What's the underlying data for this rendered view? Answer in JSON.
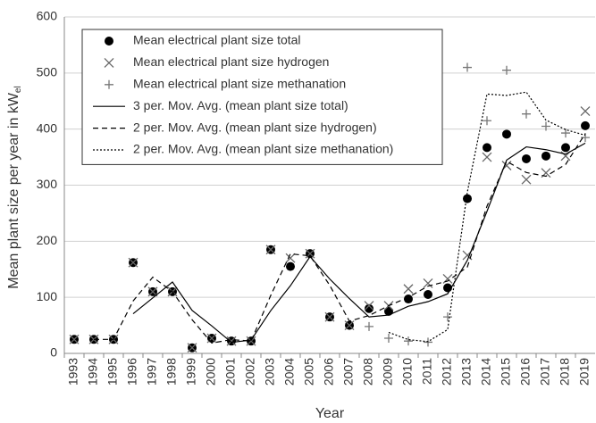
{
  "chart_data": {
    "type": "combo",
    "xlabel": "Year",
    "ylabel": "Mean plant size per year in kW",
    "ylabel_sub": "el",
    "categories": [
      "1993",
      "1994",
      "1995",
      "1996",
      "1997",
      "1998",
      "1999",
      "2000",
      "2001",
      "2002",
      "2003",
      "2004",
      "2005",
      "2006",
      "2007",
      "2008",
      "2009",
      "2010",
      "2011",
      "2012",
      "2013",
      "2014",
      "2015",
      "2016",
      "2017",
      "2018",
      "2019"
    ],
    "ylim": [
      0,
      600
    ],
    "yticks": [
      0,
      100,
      200,
      300,
      400,
      500,
      600
    ],
    "grid": true,
    "legend": "upper left",
    "series": [
      {
        "name": "Mean electrical plant size total",
        "type": "scatter",
        "marker": "circle",
        "color": "#000000",
        "values": [
          25,
          25,
          25,
          162,
          110,
          110,
          10,
          27,
          22,
          22,
          185,
          155,
          178,
          65,
          50,
          80,
          75,
          97,
          105,
          117,
          276,
          367,
          391,
          347,
          352,
          367,
          406
        ]
      },
      {
        "name": "Mean electrical plant size hydrogen",
        "type": "scatter",
        "marker": "x",
        "color": "#666666",
        "values": [
          25,
          25,
          25,
          162,
          110,
          110,
          10,
          27,
          22,
          22,
          185,
          170,
          178,
          65,
          50,
          85,
          85,
          115,
          125,
          133,
          175,
          350,
          335,
          310,
          322,
          352,
          432
        ]
      },
      {
        "name": "Mean electrical plant size methanation",
        "type": "scatter",
        "marker": "plus",
        "color": "#777777",
        "values": [
          null,
          null,
          null,
          null,
          null,
          null,
          null,
          null,
          null,
          null,
          null,
          null,
          null,
          null,
          null,
          48,
          27,
          22,
          20,
          65,
          510,
          415,
          505,
          427,
          405,
          393,
          385
        ]
      },
      {
        "name": "3 per. Mov. Avg. (mean plant size total)",
        "type": "line",
        "dash": "solid",
        "color": "#000000",
        "values": [
          null,
          null,
          null,
          70.7,
          99,
          127.3,
          76.7,
          49,
          19.7,
          23.7,
          76.3,
          120.7,
          172.7,
          132.7,
          97.7,
          65,
          68.3,
          84,
          92.3,
          106.3,
          166,
          253.3,
          344.7,
          368.3,
          363.3,
          355.3,
          375
        ]
      },
      {
        "name": "2 per. Mov. Avg. (mean plant size hydrogen)",
        "type": "line",
        "dash": "dashed",
        "color": "#000000",
        "values": [
          null,
          25,
          25,
          93.5,
          136,
          110,
          60,
          18.5,
          24.5,
          22,
          103.5,
          177.5,
          174,
          121.5,
          57.5,
          67.5,
          85,
          100,
          120,
          129,
          154,
          262.5,
          342.5,
          322.5,
          316,
          337,
          392
        ]
      },
      {
        "name": "2 per. Mov. Avg. (mean plant size methanation)",
        "type": "line",
        "dash": "dotted",
        "color": "#000000",
        "values": [
          null,
          null,
          null,
          null,
          null,
          null,
          null,
          null,
          null,
          null,
          null,
          null,
          null,
          null,
          null,
          null,
          37.5,
          24.5,
          21,
          42.5,
          287.5,
          462.5,
          460,
          466,
          416,
          399,
          389
        ]
      }
    ]
  }
}
